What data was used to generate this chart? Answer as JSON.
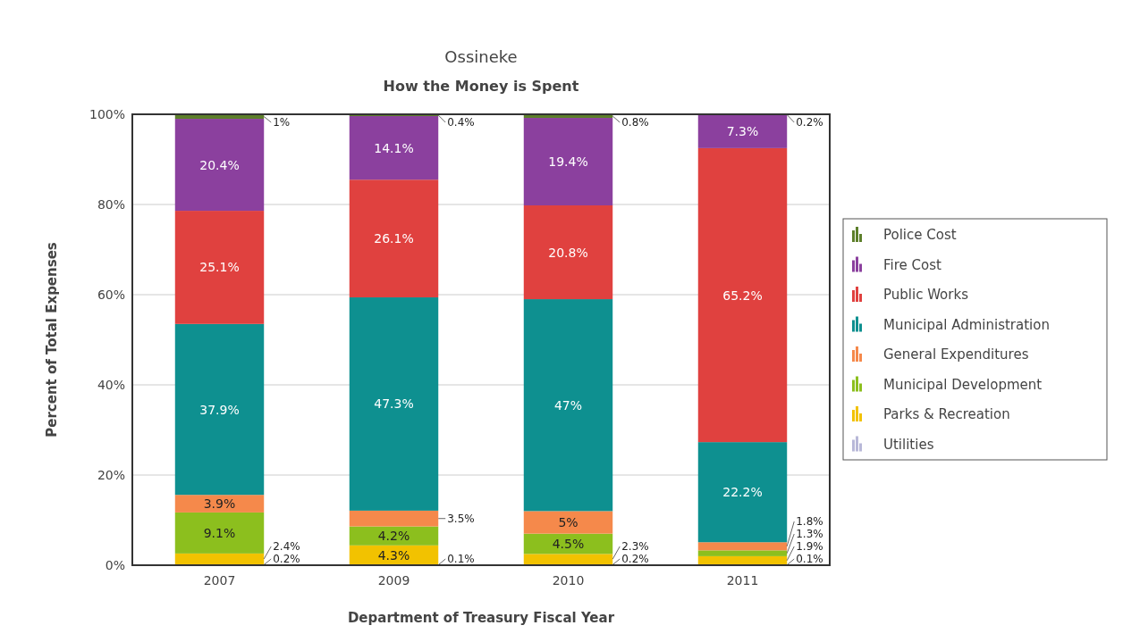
{
  "chart_data": {
    "type": "bar",
    "title": "Ossineke",
    "subtitle": "How the Money is Spent",
    "xlabel": "Department of Treasury Fiscal Year",
    "ylabel": "Percent of Total Expenses",
    "categories": [
      "2007",
      "2009",
      "2010",
      "2011"
    ],
    "stacked": true,
    "ylim": [
      0,
      100
    ],
    "yticks": [
      {
        "value": 0,
        "label": "0%"
      },
      {
        "value": 20,
        "label": "20%"
      },
      {
        "value": 40,
        "label": "40%"
      },
      {
        "value": 60,
        "label": "60%"
      },
      {
        "value": 80,
        "label": "80%"
      },
      {
        "value": 100,
        "label": "100%"
      }
    ],
    "grid": "y",
    "legend": "right",
    "series": [
      {
        "name": "Utilities",
        "color": "#b8b8d8",
        "values": [
          0.2,
          0.1,
          0.2,
          0.1
        ],
        "value_labels": [
          "0.2%",
          "0.1%",
          "0.2%",
          "0.1%"
        ]
      },
      {
        "name": "Parks & Recreation",
        "color": "#f2c200",
        "values": [
          2.4,
          4.3,
          2.3,
          1.9
        ],
        "value_labels": [
          "2.4%",
          "4.3%",
          "2.3%",
          "1.9%"
        ]
      },
      {
        "name": "Municipal Development",
        "color": "#8cbf1e",
        "values": [
          9.1,
          4.2,
          4.5,
          1.3
        ],
        "value_labels": [
          "9.1%",
          "4.2%",
          "4.5%",
          "1.3%"
        ]
      },
      {
        "name": "General Expenditures",
        "color": "#f5894b",
        "values": [
          3.9,
          3.5,
          5,
          1.8
        ],
        "value_labels": [
          "3.9%",
          "3.5%",
          "5%",
          "1.8%"
        ]
      },
      {
        "name": "Municipal Administration",
        "color": "#0e9090",
        "values": [
          37.9,
          47.3,
          47.0,
          22.2
        ],
        "value_labels": [
          "37.9%",
          "47.3%",
          "47%",
          "22.2%"
        ]
      },
      {
        "name": "Public Works",
        "color": "#e0413f",
        "values": [
          25.1,
          26.1,
          20.8,
          65.2
        ],
        "value_labels": [
          "25.1%",
          "26.1%",
          "20.8%",
          "65.2%"
        ]
      },
      {
        "name": "Fire Cost",
        "color": "#8b409e",
        "values": [
          20.4,
          14.1,
          19.4,
          7.3
        ],
        "value_labels": [
          "20.4%",
          "14.1%",
          "19.4%",
          "7.3%"
        ]
      },
      {
        "name": "Police Cost",
        "color": "#5d7f2b",
        "values": [
          1.0,
          0.4,
          0.8,
          0.2
        ],
        "value_labels": [
          "1%",
          "0.4%",
          "0.8%",
          "0.2%"
        ]
      }
    ]
  }
}
